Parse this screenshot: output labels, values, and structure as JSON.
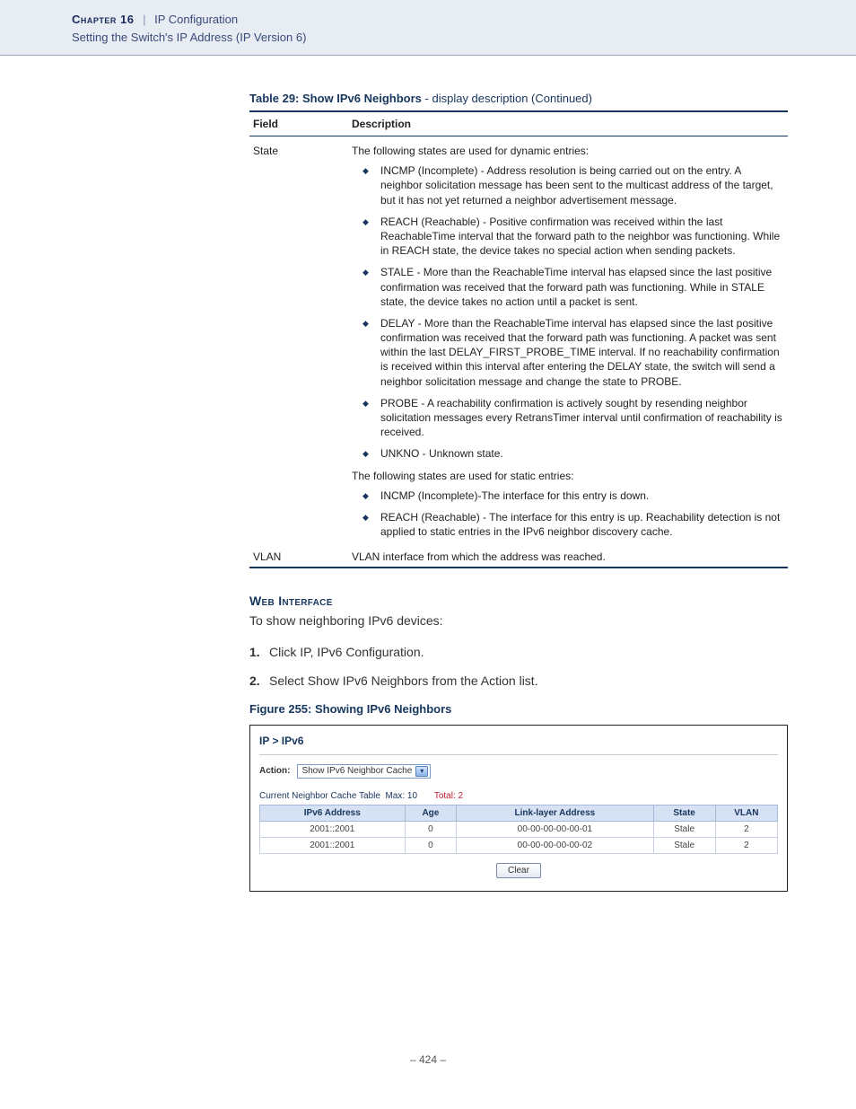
{
  "header": {
    "chapter_label": "Chapter 16",
    "separator": "|",
    "title": "IP Configuration",
    "subtitle": "Setting the Switch's IP Address (IP Version 6)"
  },
  "table29": {
    "caption_strong": "Table 29: Show IPv6 Neighbors",
    "caption_rest": " - display description (Continued)",
    "col_field": "Field",
    "col_desc": "Description",
    "rows": {
      "state_field": "State",
      "state_intro": "The following states are used for dynamic entries:",
      "state_items": [
        "INCMP (Incomplete) - Address resolution is being carried out on the entry. A neighbor solicitation message has been sent to the multicast address of the target, but it has not yet returned a neighbor advertisement message.",
        "REACH (Reachable) - Positive confirmation was received within the last ReachableTime interval that the forward path to the neighbor was functioning. While in REACH state, the device takes no special action when sending packets.",
        "STALE - More than the ReachableTime interval has elapsed since the last positive confirmation was received that the forward path was functioning. While in STALE state, the device takes no action until a packet is sent.",
        "DELAY - More than the ReachableTime interval has elapsed since the last positive confirmation was received that the forward path was functioning. A packet was sent within the last DELAY_FIRST_PROBE_TIME interval. If no reachability confirmation is received within this interval after entering the DELAY state, the switch will send a neighbor solicitation message and change the state to PROBE.",
        "PROBE - A reachability confirmation is actively sought by resending neighbor solicitation messages every RetransTimer interval until confirmation of reachability is received.",
        "UNKNO - Unknown state."
      ],
      "static_intro": "The following states are used for static entries:",
      "static_items": [
        "INCMP (Incomplete)-The interface for this entry is down.",
        "REACH (Reachable) - The interface for this entry is up. Reachability detection is not applied to static entries in the IPv6 neighbor discovery cache."
      ],
      "vlan_field": "VLAN",
      "vlan_desc": "VLAN interface from which the address was reached."
    }
  },
  "web_interface": {
    "heading": "Web Interface",
    "intro": "To show neighboring IPv6 devices:",
    "steps": [
      "Click IP, IPv6 Configuration.",
      "Select Show IPv6 Neighbors from the Action list."
    ]
  },
  "figure": {
    "caption": "Figure 255:  Showing IPv6 Neighbors",
    "crumb": "IP > IPv6",
    "action_label": "Action:",
    "action_value": "Show IPv6 Neighbor Cache",
    "cache_label": "Current Neighbor Cache Table",
    "cache_max": "Max: 10",
    "cache_total": "Total: 2",
    "columns": [
      "IPv6 Address",
      "Age",
      "Link-layer Address",
      "State",
      "VLAN"
    ],
    "col_widths": [
      "28%",
      "10%",
      "38%",
      "12%",
      "12%"
    ],
    "rows": [
      [
        "2001::2001",
        "0",
        "00-00-00-00-00-01",
        "Stale",
        "2"
      ],
      [
        "2001::2001",
        "0",
        "00-00-00-00-00-02",
        "Stale",
        "2"
      ]
    ],
    "clear_btn": "Clear"
  },
  "page_number": "–  424  –",
  "colors": {
    "heading": "#17365d",
    "header_bg": "#e8ecf3",
    "cache_th_bg": "#d6e1f3",
    "total_color": "#c02030"
  }
}
